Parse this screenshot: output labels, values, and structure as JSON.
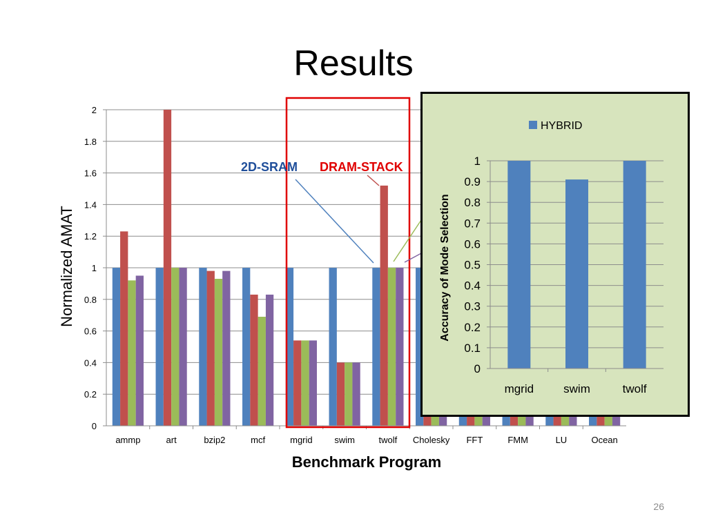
{
  "slide": {
    "title": "Results",
    "page_number": "26"
  },
  "annotations": {
    "label_2d_sram": "2D-SRAM",
    "label_dram_stack": "DRAM-STACK",
    "color_2d_sram": "#1f4e9a",
    "color_dram_stack": "#e00000",
    "highlight_box_color": "#e00000"
  },
  "chart_data": [
    {
      "type": "bar",
      "title": "",
      "xlabel": "Benchmark Program",
      "ylabel": "Normalized AMAT",
      "ylim": [
        0,
        2
      ],
      "yticks": [
        "0",
        "0.2",
        "0.4",
        "0.6",
        "0.8",
        "1",
        "1.2",
        "1.4",
        "1.6",
        "1.8",
        "2"
      ],
      "grid": true,
      "categories": [
        "ammp",
        "art",
        "bzip2",
        "mcf",
        "mgrid",
        "swim",
        "twolf",
        "Cholesky",
        "FFT",
        "FMM",
        "LU",
        "Ocean"
      ],
      "series": [
        {
          "color": "#4f81bd",
          "values": [
            1,
            1,
            1,
            1,
            1,
            1,
            1,
            1,
            1,
            1,
            1,
            1
          ]
        },
        {
          "color": "#c0504d",
          "values": [
            1.23,
            2.0,
            0.98,
            0.83,
            0.54,
            0.4,
            1.52,
            0.75,
            0.75,
            0.75,
            0.75,
            0.75
          ]
        },
        {
          "color": "#9bbb59",
          "values": [
            0.92,
            1.0,
            0.93,
            0.69,
            0.54,
            0.4,
            1.0,
            0.75,
            0.75,
            0.75,
            0.75,
            0.75
          ]
        },
        {
          "color": "#8064a2",
          "values": [
            0.95,
            1.0,
            0.98,
            0.83,
            0.54,
            0.4,
            1.0,
            0.75,
            0.75,
            0.75,
            0.75,
            0.75
          ]
        }
      ]
    },
    {
      "type": "bar",
      "title": "",
      "xlabel": "",
      "ylabel": "Accuracy of Mode Selection",
      "ylim": [
        0,
        1
      ],
      "yticks": [
        "0",
        "0.1",
        "0.2",
        "0.3",
        "0.4",
        "0.5",
        "0.6",
        "0.7",
        "0.8",
        "0.9",
        "1"
      ],
      "grid": true,
      "legend_position": "top",
      "categories": [
        "mgrid",
        "swim",
        "twolf"
      ],
      "series": [
        {
          "name": "HYBRID",
          "color": "#4f81bd",
          "values": [
            1.0,
            0.91,
            1.0
          ]
        }
      ]
    }
  ]
}
